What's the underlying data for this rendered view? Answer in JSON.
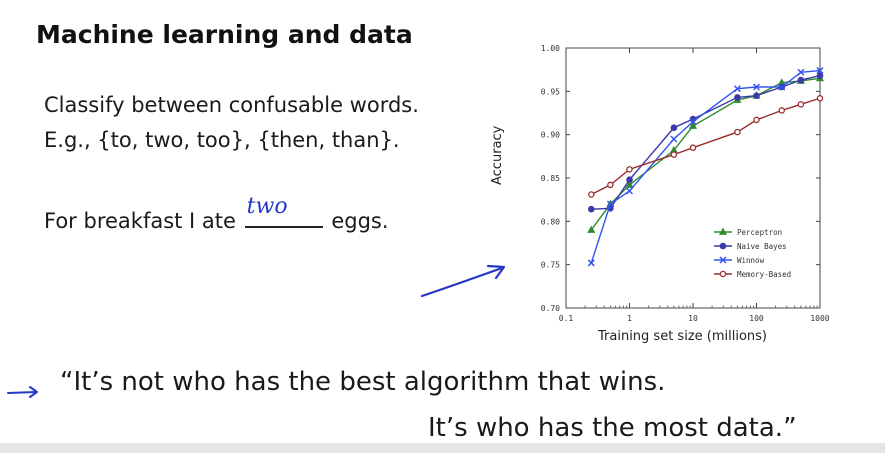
{
  "slide": {
    "title": "Machine learning and data",
    "line1": "Classify between confusable words.",
    "line2": "E.g., {to, two, too}, {then, than}.",
    "sentence_before": "For breakfast I ate",
    "handwritten_answer": "two",
    "sentence_after": "eggs.",
    "quote_line1": "“It’s not who has the best algorithm that wins.",
    "quote_line2": "It’s who has the most data.”",
    "ink_color": "#2438c8"
  },
  "chart_data": {
    "type": "line",
    "xlabel": "Training set size (millions)",
    "ylabel": "Accuracy",
    "x_scale": "log",
    "xlim": [
      0.1,
      1000
    ],
    "ylim": [
      0.7,
      1.0
    ],
    "x_ticks": [
      "0.1",
      "1",
      "10",
      "100",
      "1000"
    ],
    "y_ticks": [
      "0.70",
      "0.75",
      "0.80",
      "0.85",
      "0.90",
      "0.95",
      "1.00"
    ],
    "legend_position": "lower-right",
    "x": [
      0.25,
      0.5,
      1,
      5,
      10,
      50,
      100,
      250,
      500,
      1000
    ],
    "series": [
      {
        "name": "Perceptron",
        "color": "#2e8b2e",
        "marker": "triangle",
        "values": [
          0.79,
          0.82,
          0.842,
          0.882,
          0.91,
          0.94,
          0.945,
          0.96,
          0.962,
          0.965
        ]
      },
      {
        "name": "Naive Bayes",
        "color": "#3a3aa8",
        "marker": "circle",
        "values": [
          0.814,
          0.815,
          0.848,
          0.908,
          0.918,
          0.943,
          0.945,
          0.955,
          0.963,
          0.968
        ]
      },
      {
        "name": "Winnow",
        "color": "#3355ee",
        "marker": "x",
        "values": [
          0.752,
          0.82,
          0.835,
          0.895,
          0.915,
          0.953,
          0.955,
          0.955,
          0.972,
          0.974
        ]
      },
      {
        "name": "Memory-Based",
        "color": "#9a2f2f",
        "marker": "circle-open",
        "values": [
          0.831,
          0.842,
          0.86,
          0.877,
          0.885,
          0.903,
          0.917,
          0.928,
          0.935,
          0.942
        ]
      }
    ]
  }
}
